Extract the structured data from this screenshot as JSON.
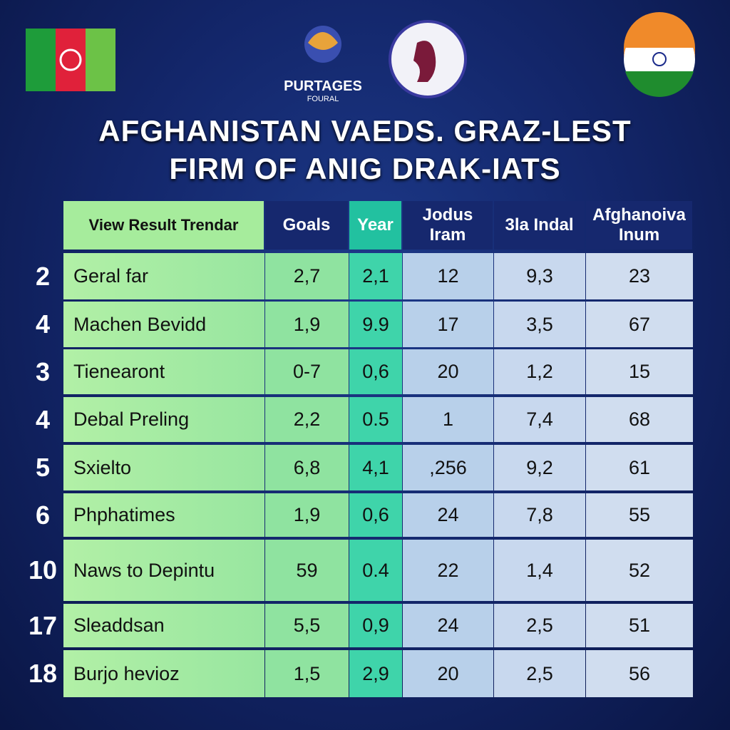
{
  "header": {
    "logo_text": "PURTAGES",
    "logo_subtext": "FOURAL",
    "title_lines": [
      "AFGHANISTAN VAEDS. GRAZ-LEST",
      "FIRM OF ANIG DRAK-IATS"
    ]
  },
  "table": {
    "columns": [
      "View Result Trendar",
      "Goals",
      "Year",
      "Jodus Iram",
      "3la Indal",
      "Afghanoiva Inum"
    ],
    "rows": [
      {
        "rank": "2",
        "cells": [
          "Geral far",
          "2,7",
          "2,1",
          "12",
          "9,3",
          "23"
        ]
      },
      {
        "rank": "4",
        "cells": [
          "Machen Bevidd",
          "1,9",
          "9.9",
          "17",
          "3,5",
          "67"
        ]
      },
      {
        "rank": "3",
        "cells": [
          "Tienearont",
          "0-7",
          "0,6",
          "20",
          "1,2",
          "15"
        ]
      },
      {
        "rank": "4",
        "cells": [
          "Debal Preling",
          "2,2",
          "0.5",
          "1",
          "7,4",
          "68"
        ]
      },
      {
        "rank": "5",
        "cells": [
          "Sxielto",
          "6,8",
          "4,1",
          ",256",
          "9,2",
          "61"
        ]
      },
      {
        "rank": "6",
        "cells": [
          "Phphatimes",
          "1,9",
          "0,6",
          "24",
          "7,8",
          "55"
        ]
      },
      {
        "rank": "10",
        "cells": [
          "Naws to Depintu",
          "59",
          "0.4",
          "22",
          "1,4",
          "52"
        ]
      },
      {
        "rank": "17",
        "cells": [
          "Sleaddsan",
          "5,5",
          "0,9",
          "24",
          "2,5",
          "51"
        ]
      },
      {
        "rank": "18",
        "cells": [
          "Burjo hevioz",
          "1,5",
          "2,9",
          "20",
          "2,5",
          "56"
        ]
      }
    ]
  }
}
